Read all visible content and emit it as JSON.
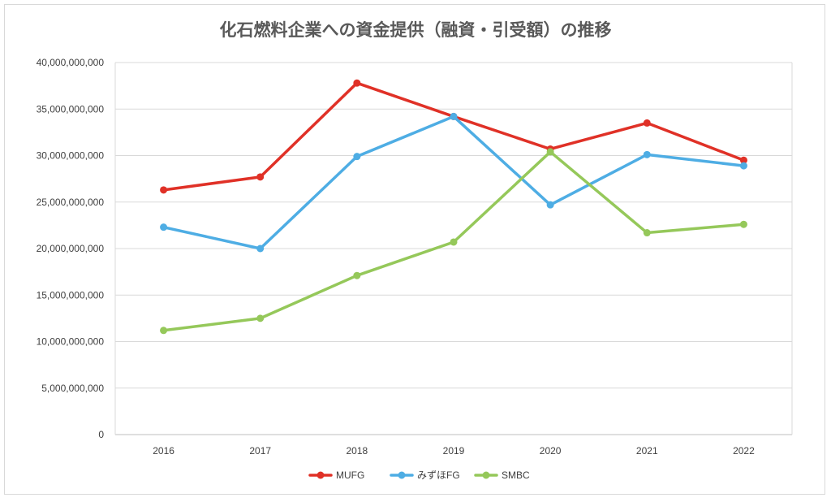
{
  "chart_data": {
    "type": "line",
    "title": "化石燃料企業への資金提供（融資・引受額）の推移",
    "xlabel": "",
    "ylabel": "",
    "categories": [
      "2016",
      "2017",
      "2018",
      "2019",
      "2020",
      "2021",
      "2022"
    ],
    "ylim": [
      0,
      40000000000
    ],
    "yticks": [
      0,
      5000000000,
      10000000000,
      15000000000,
      20000000000,
      25000000000,
      30000000000,
      35000000000,
      40000000000
    ],
    "ytick_labels": [
      "0",
      "5,000,000,000",
      "10,000,000,000",
      "15,000,000,000",
      "20,000,000,000",
      "25,000,000,000",
      "30,000,000,000",
      "35,000,000,000",
      "40,000,000,000"
    ],
    "grid": true,
    "legend_position": "bottom",
    "series": [
      {
        "name": "MUFG",
        "color": "#e03127",
        "values": [
          26300000000,
          27700000000,
          37800000000,
          34200000000,
          30700000000,
          33500000000,
          29500000000
        ]
      },
      {
        "name": "みずほFG",
        "color": "#4eade4",
        "values": [
          22300000000,
          20000000000,
          29900000000,
          34200000000,
          24700000000,
          30100000000,
          28900000000
        ]
      },
      {
        "name": "SMBC",
        "color": "#95c85a",
        "values": [
          11200000000,
          12500000000,
          17100000000,
          20700000000,
          30400000000,
          21700000000,
          22600000000
        ]
      }
    ]
  }
}
